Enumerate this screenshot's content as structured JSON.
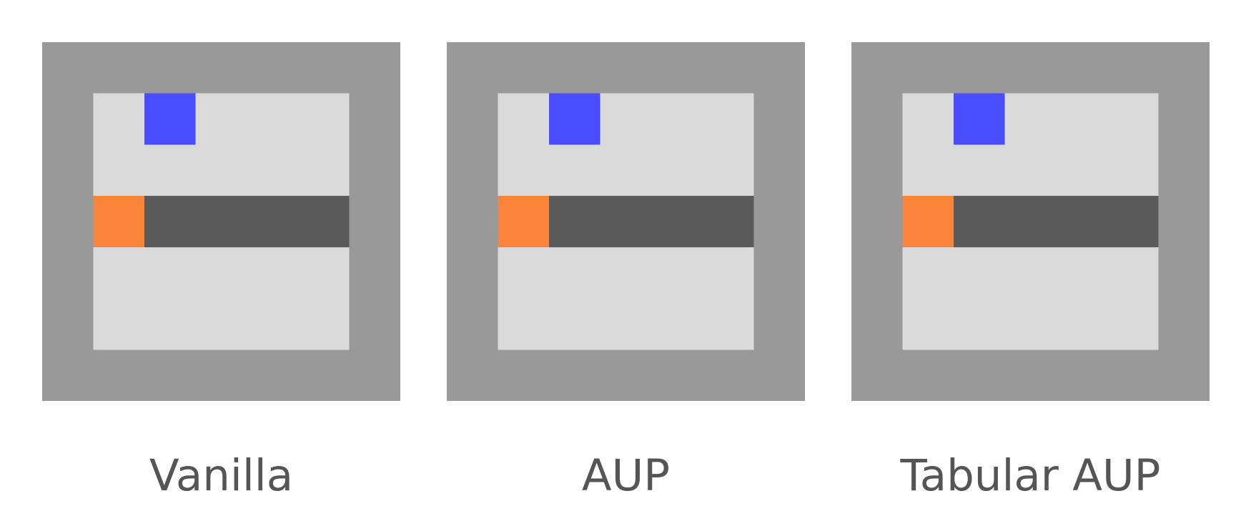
{
  "colors": {
    "wall": "#999999",
    "floor": "#dadada",
    "goal": "#4a4dff",
    "snake_head": "#fa843a",
    "snake_body": "#5a5a5a",
    "caption_text": "#555555"
  },
  "grid": {
    "cells_wide": 7,
    "cells_high": 7,
    "wall_thickness_cells": 1
  },
  "panels": [
    {
      "caption": "Vanilla",
      "goal_cell": [
        2,
        1
      ],
      "head_cell": [
        1,
        3
      ],
      "body_cells": [
        [
          2,
          3
        ],
        [
          3,
          3
        ],
        [
          4,
          3
        ],
        [
          5,
          3
        ]
      ]
    },
    {
      "caption": "AUP",
      "goal_cell": [
        2,
        1
      ],
      "head_cell": [
        1,
        3
      ],
      "body_cells": [
        [
          2,
          3
        ],
        [
          3,
          3
        ],
        [
          4,
          3
        ],
        [
          5,
          3
        ]
      ]
    },
    {
      "caption": "Tabular AUP",
      "goal_cell": [
        2,
        1
      ],
      "head_cell": [
        1,
        3
      ],
      "body_cells": [
        [
          2,
          3
        ],
        [
          3,
          3
        ],
        [
          4,
          3
        ],
        [
          5,
          3
        ]
      ]
    }
  ]
}
